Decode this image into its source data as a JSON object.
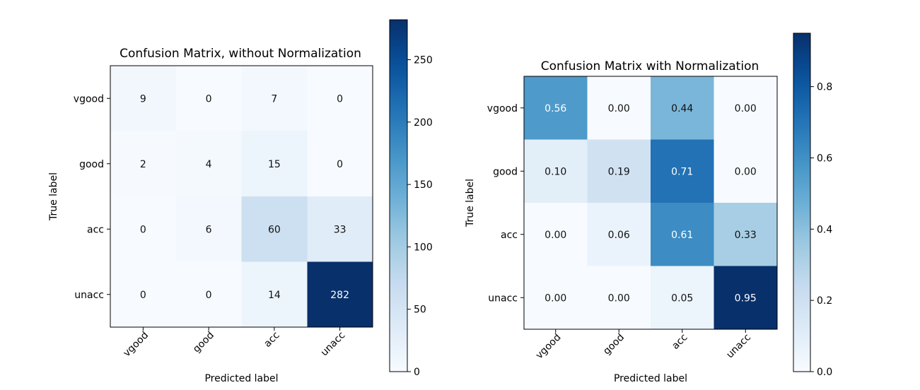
{
  "chart_data": [
    {
      "type": "heatmap",
      "title": "Confusion Matrix, without Normalization",
      "xlabel": "Predicted label",
      "ylabel": "True label",
      "x_categories": [
        "vgood",
        "good",
        "acc",
        "unacc"
      ],
      "y_categories": [
        "vgood",
        "good",
        "acc",
        "unacc"
      ],
      "values": [
        [
          9,
          0,
          7,
          0
        ],
        [
          2,
          4,
          15,
          0
        ],
        [
          0,
          6,
          60,
          33
        ],
        [
          0,
          0,
          14,
          282
        ]
      ],
      "cell_labels": [
        [
          "9",
          "0",
          "7",
          "0"
        ],
        [
          "2",
          "4",
          "15",
          "0"
        ],
        [
          "0",
          "6",
          "60",
          "33"
        ],
        [
          "0",
          "0",
          "14",
          "282"
        ]
      ],
      "vmin": 0,
      "vmax": 282,
      "colorbar_ticks": [
        0,
        50,
        100,
        150,
        200,
        250
      ],
      "colorbar_tick_labels": [
        "0",
        "50",
        "100",
        "150",
        "200",
        "250"
      ],
      "colormap": "Blues"
    },
    {
      "type": "heatmap",
      "title": "Confusion Matrix with Normalization",
      "xlabel": "Predicted label",
      "ylabel": "True label",
      "x_categories": [
        "vgood",
        "good",
        "acc",
        "unacc"
      ],
      "y_categories": [
        "vgood",
        "good",
        "acc",
        "unacc"
      ],
      "values": [
        [
          0.56,
          0.0,
          0.44,
          0.0
        ],
        [
          0.1,
          0.19,
          0.71,
          0.0
        ],
        [
          0.0,
          0.06,
          0.61,
          0.33
        ],
        [
          0.0,
          0.0,
          0.05,
          0.95
        ]
      ],
      "cell_labels": [
        [
          "0.56",
          "0.00",
          "0.44",
          "0.00"
        ],
        [
          "0.10",
          "0.19",
          "0.71",
          "0.00"
        ],
        [
          "0.00",
          "0.06",
          "0.61",
          "0.33"
        ],
        [
          "0.00",
          "0.00",
          "0.05",
          "0.95"
        ]
      ],
      "vmin": 0,
      "vmax": 0.95,
      "colorbar_ticks": [
        0,
        0.2,
        0.4,
        0.6,
        0.8
      ],
      "colorbar_tick_labels": [
        "0.0",
        "0.2",
        "0.4",
        "0.6",
        "0.8"
      ],
      "colormap": "Blues"
    }
  ]
}
